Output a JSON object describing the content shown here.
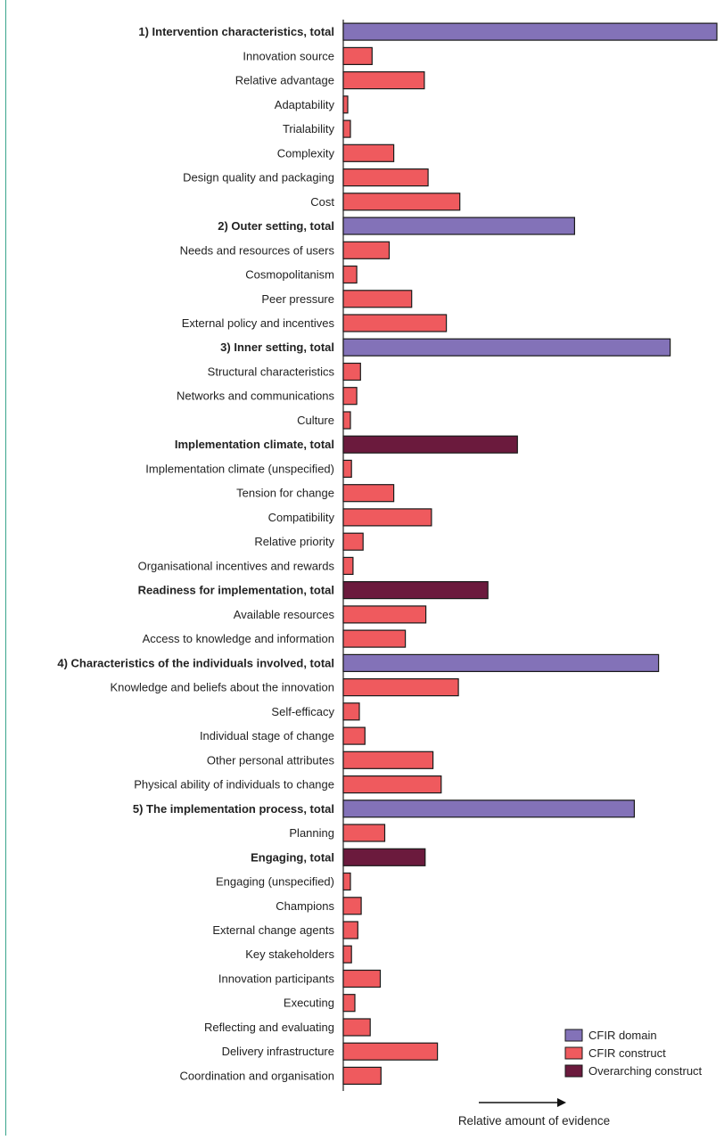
{
  "chart_data": {
    "type": "bar",
    "orientation": "horizontal",
    "xlabel": "Relative amount of evidence",
    "grid": false,
    "legend_position": "bottom-right",
    "legend": [
      {
        "key": "domain",
        "label": "CFIR domain",
        "color": "#8372b8"
      },
      {
        "key": "construct",
        "label": "CFIR construct",
        "color": "#ef5a5e"
      },
      {
        "key": "overarching",
        "label": "Overarching construct",
        "color": "#6b1a3d"
      }
    ],
    "categories": [
      {
        "label": "1) Intervention characteristics, total",
        "value": 100,
        "kind": "domain"
      },
      {
        "label": "Innovation source",
        "value": 7.7,
        "kind": "construct"
      },
      {
        "label": "Relative advantage",
        "value": 21.7,
        "kind": "construct"
      },
      {
        "label": "Adaptability",
        "value": 1.2,
        "kind": "construct"
      },
      {
        "label": "Trialability",
        "value": 1.9,
        "kind": "construct"
      },
      {
        "label": "Complexity",
        "value": 13.5,
        "kind": "construct"
      },
      {
        "label": "Design quality and packaging",
        "value": 22.7,
        "kind": "construct"
      },
      {
        "label": "Cost",
        "value": 31.2,
        "kind": "construct"
      },
      {
        "label": "2) Outer setting, total",
        "value": 61.9,
        "kind": "domain"
      },
      {
        "label": "Needs and resources of users",
        "value": 12.3,
        "kind": "construct"
      },
      {
        "label": "Cosmopolitanism",
        "value": 3.6,
        "kind": "construct"
      },
      {
        "label": "Peer pressure",
        "value": 18.3,
        "kind": "construct"
      },
      {
        "label": "External policy and incentives",
        "value": 27.6,
        "kind": "construct"
      },
      {
        "label": "3) Inner setting, total",
        "value": 87.5,
        "kind": "domain"
      },
      {
        "label": "Structural characteristics",
        "value": 4.6,
        "kind": "construct"
      },
      {
        "label": "Networks and communications",
        "value": 3.6,
        "kind": "construct"
      },
      {
        "label": "Culture",
        "value": 1.9,
        "kind": "construct"
      },
      {
        "label": "Implementation climate, total",
        "value": 46.6,
        "kind": "overarching"
      },
      {
        "label": "Implementation climate (unspecified)",
        "value": 2.2,
        "kind": "construct"
      },
      {
        "label": "Tension for change",
        "value": 13.5,
        "kind": "construct"
      },
      {
        "label": "Compatibility",
        "value": 23.6,
        "kind": "construct"
      },
      {
        "label": "Relative priority",
        "value": 5.3,
        "kind": "construct"
      },
      {
        "label": "Organisational incentives and rewards",
        "value": 2.6,
        "kind": "construct"
      },
      {
        "label": "Readiness for implementation, total",
        "value": 38.7,
        "kind": "overarching"
      },
      {
        "label": "Available resources",
        "value": 22.1,
        "kind": "construct"
      },
      {
        "label": "Access to knowledge and information",
        "value": 16.6,
        "kind": "construct"
      },
      {
        "label": "4) Characteristics of the individuals involved, total",
        "value": 84.4,
        "kind": "domain"
      },
      {
        "label": "Knowledge and beliefs about the innovation",
        "value": 30.8,
        "kind": "construct"
      },
      {
        "label": "Self-efficacy",
        "value": 4.3,
        "kind": "construct"
      },
      {
        "label": "Individual stage of change",
        "value": 5.8,
        "kind": "construct"
      },
      {
        "label": "Other personal attributes",
        "value": 24.0,
        "kind": "construct"
      },
      {
        "label": "Physical ability of individuals to change",
        "value": 26.2,
        "kind": "construct"
      },
      {
        "label": "5) The implementation process, total",
        "value": 77.9,
        "kind": "domain"
      },
      {
        "label": "Planning",
        "value": 11.1,
        "kind": "construct"
      },
      {
        "label": "Engaging, total",
        "value": 21.9,
        "kind": "overarching"
      },
      {
        "label": "Engaging (unspecified)",
        "value": 1.9,
        "kind": "construct"
      },
      {
        "label": "Champions",
        "value": 4.8,
        "kind": "construct"
      },
      {
        "label": "External change agents",
        "value": 3.9,
        "kind": "construct"
      },
      {
        "label": "Key stakeholders",
        "value": 2.2,
        "kind": "construct"
      },
      {
        "label": "Innovation participants",
        "value": 9.9,
        "kind": "construct"
      },
      {
        "label": "Executing",
        "value": 3.1,
        "kind": "construct"
      },
      {
        "label": "Reflecting and evaluating",
        "value": 7.2,
        "kind": "construct"
      },
      {
        "label": "Delivery infrastructure",
        "value": 25.2,
        "kind": "construct"
      },
      {
        "label": "Coordination and organisation",
        "value": 10.1,
        "kind": "construct"
      }
    ]
  }
}
